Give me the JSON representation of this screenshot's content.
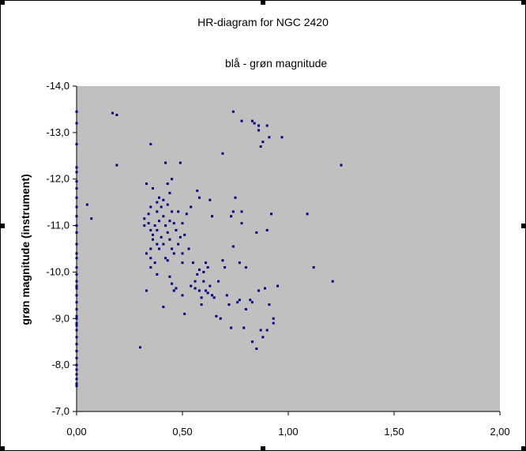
{
  "chart_data": {
    "type": "scatter",
    "title": "HR-diagram for NGC 2420",
    "xlabel": "blå - grøn magnitude",
    "ylabel": "grøn magnitude (instrument)",
    "xlim": [
      0,
      2
    ],
    "ylim": [
      -14,
      -7
    ],
    "y_reversed": true,
    "x_ticks": [
      "0,00",
      "0,50",
      "1,00",
      "1,50",
      "2,00"
    ],
    "y_ticks": [
      "-14,0",
      "-13,0",
      "-12,0",
      "-11,0",
      "-10,0",
      "-9,0",
      "-8,0",
      "-7,0"
    ],
    "x_tick_values": [
      0,
      0.5,
      1.0,
      1.5,
      2.0
    ],
    "y_tick_values": [
      -14,
      -13,
      -12,
      -11,
      -10,
      -9,
      -8,
      -7
    ],
    "grid": false,
    "legend": "none",
    "colors": {
      "plot_bg": "#c0c0c0",
      "marker": "#000080",
      "axis": "#000000"
    },
    "series": [
      {
        "points": [
          [
            0.0,
            -13.45
          ],
          [
            0.0,
            -13.2
          ],
          [
            0.0,
            -12.75
          ],
          [
            0.0,
            -12.25
          ],
          [
            0.0,
            -12.15
          ],
          [
            0.0,
            -11.95
          ],
          [
            0.0,
            -11.8
          ],
          [
            0.0,
            -11.6
          ],
          [
            0.0,
            -11.4
          ],
          [
            0.0,
            -11.2
          ],
          [
            0.0,
            -11.0
          ],
          [
            0.0,
            -10.85
          ],
          [
            0.0,
            -10.6
          ],
          [
            0.0,
            -10.4
          ],
          [
            0.0,
            -10.3
          ],
          [
            0.0,
            -10.1
          ],
          [
            0.0,
            -9.95
          ],
          [
            0.0,
            -9.8
          ],
          [
            0.0,
            -9.65
          ],
          [
            0.0,
            -9.5
          ],
          [
            0.0,
            -9.35
          ],
          [
            0.0,
            -9.2
          ],
          [
            0.0,
            -9.05
          ],
          [
            0.0,
            -8.9
          ],
          [
            0.0,
            -8.75
          ],
          [
            0.0,
            -8.6
          ],
          [
            0.0,
            -8.45
          ],
          [
            0.0,
            -8.3
          ],
          [
            0.0,
            -8.15
          ],
          [
            0.0,
            -8.0
          ],
          [
            0.0,
            -7.9
          ],
          [
            0.0,
            -7.8
          ],
          [
            0.0,
            -7.7
          ],
          [
            0.0,
            -7.6
          ],
          [
            0.0,
            -7.55
          ],
          [
            0.0,
            -9.0
          ],
          [
            0.0,
            -8.85
          ],
          [
            0.0,
            -9.7
          ],
          [
            0.05,
            -11.45
          ],
          [
            0.07,
            -11.15
          ],
          [
            0.17,
            -13.42
          ],
          [
            0.19,
            -13.38
          ],
          [
            0.19,
            -12.3
          ],
          [
            0.3,
            -8.38
          ],
          [
            0.32,
            -11.15
          ],
          [
            0.32,
            -11.0
          ],
          [
            0.33,
            -11.9
          ],
          [
            0.33,
            -10.4
          ],
          [
            0.33,
            -9.6
          ],
          [
            0.34,
            -11.25
          ],
          [
            0.34,
            -11.05
          ],
          [
            0.35,
            -11.4
          ],
          [
            0.35,
            -10.9
          ],
          [
            0.35,
            -10.5
          ],
          [
            0.35,
            -10.3
          ],
          [
            0.35,
            -10.1
          ],
          [
            0.35,
            -12.75
          ],
          [
            0.36,
            -11.8
          ],
          [
            0.36,
            -10.8
          ],
          [
            0.36,
            -10.7
          ],
          [
            0.37,
            -11.0
          ],
          [
            0.37,
            -10.2
          ],
          [
            0.38,
            -11.5
          ],
          [
            0.38,
            -11.3
          ],
          [
            0.38,
            -10.6
          ],
          [
            0.38,
            -10.9
          ],
          [
            0.38,
            -9.95
          ],
          [
            0.39,
            -11.6
          ],
          [
            0.39,
            -11.1
          ],
          [
            0.39,
            -10.5
          ],
          [
            0.4,
            -11.4
          ],
          [
            0.4,
            -10.75
          ],
          [
            0.41,
            -11.55
          ],
          [
            0.41,
            -11.2
          ],
          [
            0.41,
            -10.6
          ],
          [
            0.41,
            -9.25
          ],
          [
            0.42,
            -12.35
          ],
          [
            0.42,
            -11.0
          ],
          [
            0.42,
            -10.3
          ],
          [
            0.43,
            -11.9
          ],
          [
            0.43,
            -11.45
          ],
          [
            0.43,
            -10.85
          ],
          [
            0.43,
            -10.25
          ],
          [
            0.44,
            -11.7
          ],
          [
            0.44,
            -11.1
          ],
          [
            0.44,
            -10.7
          ],
          [
            0.44,
            -9.9
          ],
          [
            0.45,
            -12.0
          ],
          [
            0.45,
            -11.3
          ],
          [
            0.45,
            -10.5
          ],
          [
            0.45,
            -9.75
          ],
          [
            0.46,
            -11.05
          ],
          [
            0.46,
            -10.4
          ],
          [
            0.46,
            -9.6
          ],
          [
            0.47,
            -10.9
          ],
          [
            0.47,
            -9.65
          ],
          [
            0.48,
            -11.3
          ],
          [
            0.48,
            -10.6
          ],
          [
            0.49,
            -12.35
          ],
          [
            0.49,
            -10.75
          ],
          [
            0.5,
            -11.05
          ],
          [
            0.5,
            -10.4
          ],
          [
            0.5,
            -10.2
          ],
          [
            0.5,
            -9.5
          ],
          [
            0.51,
            -10.8
          ],
          [
            0.51,
            -9.1
          ],
          [
            0.52,
            -11.25
          ],
          [
            0.53,
            -10.5
          ],
          [
            0.54,
            -9.7
          ],
          [
            0.54,
            -11.4
          ],
          [
            0.55,
            -10.2
          ],
          [
            0.56,
            -9.8
          ],
          [
            0.56,
            -9.65
          ],
          [
            0.57,
            -11.75
          ],
          [
            0.57,
            -9.95
          ],
          [
            0.58,
            -11.6
          ],
          [
            0.58,
            -10.05
          ],
          [
            0.58,
            -9.6
          ],
          [
            0.59,
            -9.45
          ],
          [
            0.59,
            -9.3
          ],
          [
            0.6,
            -10.0
          ],
          [
            0.6,
            -9.8
          ],
          [
            0.61,
            -9.6
          ],
          [
            0.61,
            -10.2
          ],
          [
            0.62,
            -9.55
          ],
          [
            0.62,
            -10.1
          ],
          [
            0.63,
            -9.7
          ],
          [
            0.63,
            -11.55
          ],
          [
            0.64,
            -9.5
          ],
          [
            0.64,
            -11.2
          ],
          [
            0.65,
            -9.45
          ],
          [
            0.66,
            -9.05
          ],
          [
            0.67,
            -9.8
          ],
          [
            0.68,
            -9.0
          ],
          [
            0.69,
            -10.25
          ],
          [
            0.69,
            -12.55
          ],
          [
            0.7,
            -10.1
          ],
          [
            0.71,
            -9.5
          ],
          [
            0.72,
            -9.3
          ],
          [
            0.73,
            -8.8
          ],
          [
            0.73,
            -11.2
          ],
          [
            0.74,
            -10.55
          ],
          [
            0.74,
            -11.3
          ],
          [
            0.74,
            -13.45
          ],
          [
            0.75,
            -11.6
          ],
          [
            0.76,
            -9.35
          ],
          [
            0.77,
            -10.2
          ],
          [
            0.77,
            -9.4
          ],
          [
            0.78,
            -11.3
          ],
          [
            0.78,
            -11.05
          ],
          [
            0.78,
            -13.25
          ],
          [
            0.79,
            -8.8
          ],
          [
            0.8,
            -10.1
          ],
          [
            0.8,
            -9.2
          ],
          [
            0.82,
            -9.4
          ],
          [
            0.83,
            -9.35
          ],
          [
            0.83,
            -8.5
          ],
          [
            0.83,
            -13.25
          ],
          [
            0.84,
            -13.2
          ],
          [
            0.85,
            -10.85
          ],
          [
            0.85,
            -8.35
          ],
          [
            0.86,
            -9.6
          ],
          [
            0.86,
            -13.15
          ],
          [
            0.86,
            -13.05
          ],
          [
            0.87,
            -8.75
          ],
          [
            0.87,
            -12.7
          ],
          [
            0.88,
            -12.8
          ],
          [
            0.88,
            -8.6
          ],
          [
            0.89,
            -9.65
          ],
          [
            0.9,
            -10.9
          ],
          [
            0.9,
            -8.75
          ],
          [
            0.9,
            -13.15
          ],
          [
            0.91,
            -9.3
          ],
          [
            0.91,
            -12.9
          ],
          [
            0.92,
            -11.25
          ],
          [
            0.93,
            -9.0
          ],
          [
            0.93,
            -8.9
          ],
          [
            0.95,
            -9.7
          ],
          [
            0.97,
            -12.9
          ],
          [
            1.09,
            -11.25
          ],
          [
            1.12,
            -10.1
          ],
          [
            1.21,
            -9.8
          ],
          [
            1.25,
            -12.3
          ]
        ]
      }
    ]
  }
}
